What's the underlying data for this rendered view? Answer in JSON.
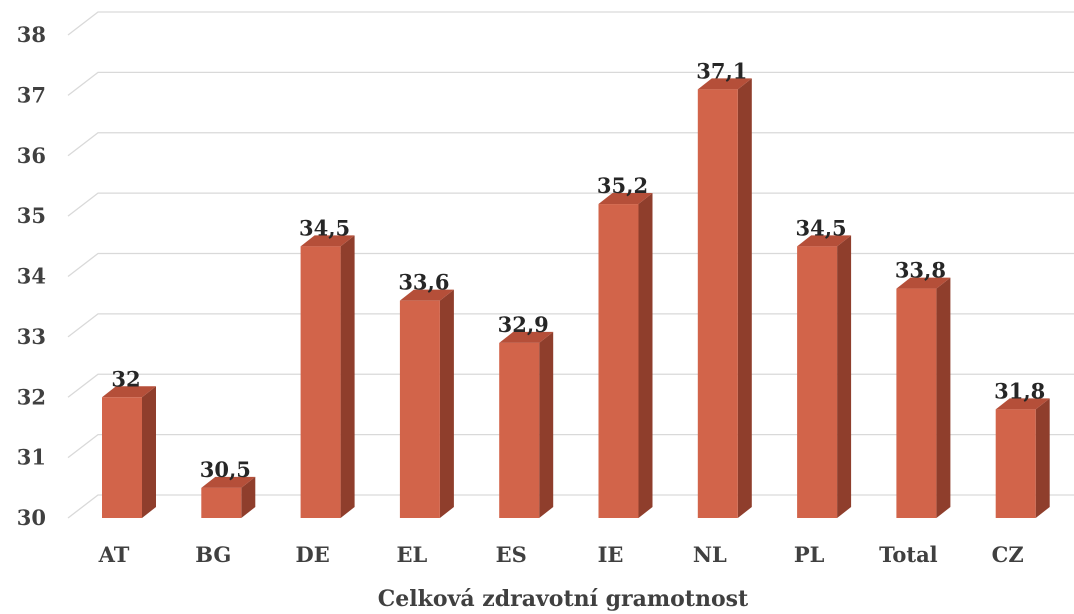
{
  "chart_data": {
    "type": "bar",
    "style": "3d-column",
    "categories": [
      "AT",
      "BG",
      "DE",
      "EL",
      "ES",
      "IE",
      "NL",
      "PL",
      "Total",
      "CZ"
    ],
    "values": [
      32,
      30.5,
      34.5,
      33.6,
      32.9,
      35.2,
      37.1,
      34.5,
      33.8,
      31.8
    ],
    "data_labels": [
      "32",
      "30,5",
      "34,5",
      "33,6",
      "32,9",
      "35,2",
      "37,1",
      "34,5",
      "33,8",
      "31,8"
    ],
    "y_ticks": [
      "30",
      "31",
      "32",
      "33",
      "34",
      "35",
      "36",
      "37",
      "38"
    ],
    "ylim": [
      30,
      38
    ],
    "title": "",
    "xlabel": "Celková zdravotní gramotnost",
    "ylabel": "",
    "grid": true,
    "legend": "none",
    "colors": {
      "bar_front": "#d2644a",
      "bar_side": "#8f3e2c",
      "bar_top": "#b54f39",
      "grid": "#d9d9d9"
    }
  }
}
